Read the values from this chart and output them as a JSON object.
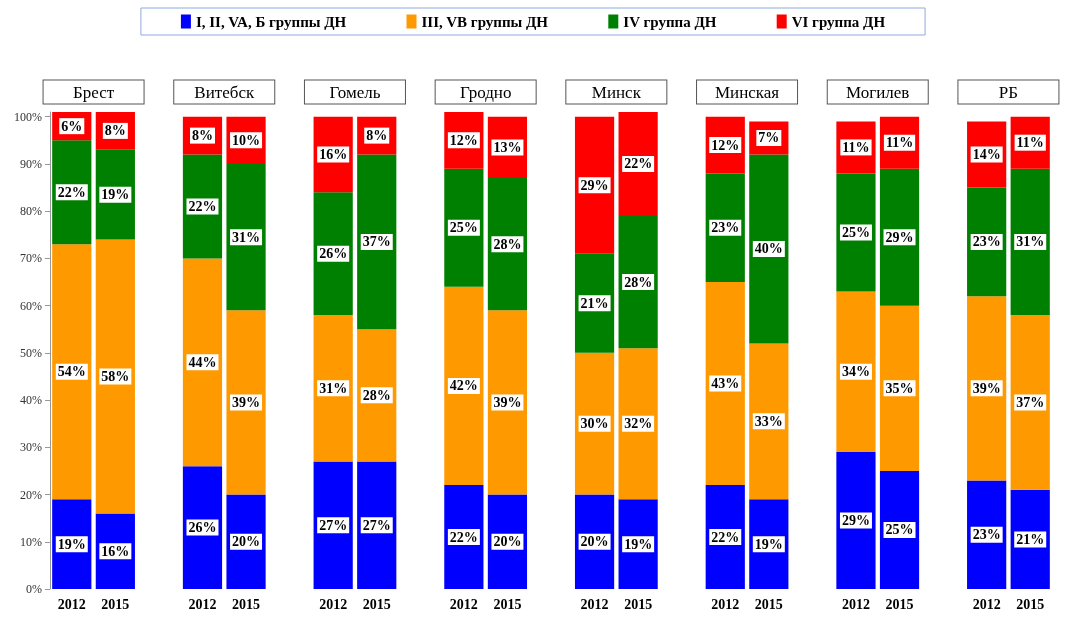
{
  "chart_data": {
    "type": "bar",
    "stacked": true,
    "categories": [
      "2012",
      "2015",
      null,
      "2012",
      "2015",
      null,
      "2012",
      "2015",
      null,
      "2012",
      "2015",
      null,
      "2012",
      "2015",
      null,
      "2012",
      "2015",
      null,
      "2012",
      "2015",
      null,
      "2012",
      "2015"
    ],
    "series": [
      {
        "name": "I, II, VA, Б группы ДН",
        "color": "#0000ff",
        "values": [
          19,
          16,
          null,
          26,
          20,
          null,
          27,
          27,
          null,
          22,
          20,
          null,
          20,
          19,
          null,
          22,
          19,
          null,
          29,
          25,
          null,
          23,
          21
        ],
        "value_labels": [
          "19%",
          "16%",
          null,
          "26%",
          "20%",
          null,
          "27%",
          "27%",
          null,
          "22%",
          "20%",
          null,
          "20%",
          "19%",
          null,
          "22%",
          "19%",
          null,
          "29%",
          "25%",
          null,
          "23%",
          "21%"
        ]
      },
      {
        "name": "III, VB группы ДН",
        "color": "#ff9900",
        "values": [
          54,
          58,
          null,
          44,
          39,
          null,
          31,
          28,
          null,
          42,
          39,
          null,
          30,
          32,
          null,
          43,
          33,
          null,
          34,
          35,
          null,
          39,
          37
        ],
        "value_labels": [
          "54%",
          "58%",
          null,
          "44%",
          "39%",
          null,
          "31%",
          "28%",
          null,
          "42%",
          "39%",
          null,
          "30%",
          "32%",
          null,
          "43%",
          "33%",
          null,
          "34%",
          "35%",
          null,
          "39%",
          "37%"
        ]
      },
      {
        "name": "IV группа ДН",
        "color": "#008000",
        "values": [
          22,
          19,
          null,
          22,
          31,
          null,
          26,
          37,
          null,
          25,
          28,
          null,
          21,
          28,
          null,
          23,
          40,
          null,
          25,
          29,
          null,
          23,
          31
        ],
        "value_labels": [
          "22%",
          "19%",
          null,
          "22%",
          "31%",
          null,
          "26%",
          "37%",
          null,
          "25%",
          "28%",
          null,
          "21%",
          "28%",
          null,
          "23%",
          "40%",
          null,
          "25%",
          "29%",
          null,
          "23%",
          "31%"
        ]
      },
      {
        "name": "VI группа ДН",
        "color": "#ff0000",
        "values": [
          6,
          8,
          null,
          8,
          10,
          null,
          16,
          8,
          null,
          12,
          13,
          null,
          29,
          22,
          null,
          12,
          7,
          null,
          11,
          11,
          null,
          14,
          11
        ],
        "value_labels": [
          "6%",
          "8%",
          null,
          "8%",
          "10%",
          null,
          "16%",
          "8%",
          null,
          "12%",
          "13%",
          null,
          "29%",
          "22%",
          null,
          "12%",
          "7%",
          null,
          "11%",
          "11%",
          null,
          "14%",
          "11%"
        ]
      }
    ],
    "ylim": [
      0,
      101
    ],
    "yticks": [
      {
        "value": 0,
        "label": "0%"
      },
      {
        "value": 10,
        "label": "10%"
      },
      {
        "value": 20,
        "label": "20%"
      },
      {
        "value": 30,
        "label": "30%"
      },
      {
        "value": 40,
        "label": "40%"
      },
      {
        "value": 50,
        "label": "50%"
      },
      {
        "value": 60,
        "label": "60%"
      },
      {
        "value": 70,
        "label": "70%"
      },
      {
        "value": 80,
        "label": "80%"
      },
      {
        "value": 90,
        "label": "90%"
      },
      {
        "value": 100,
        "label": "100%"
      }
    ],
    "annotations": [
      "Брест",
      "Витебск",
      "Гомель",
      "Гродно",
      "Минск",
      "Минская",
      "Могилев",
      "РБ"
    ],
    "legend": "top",
    "grid": false
  }
}
